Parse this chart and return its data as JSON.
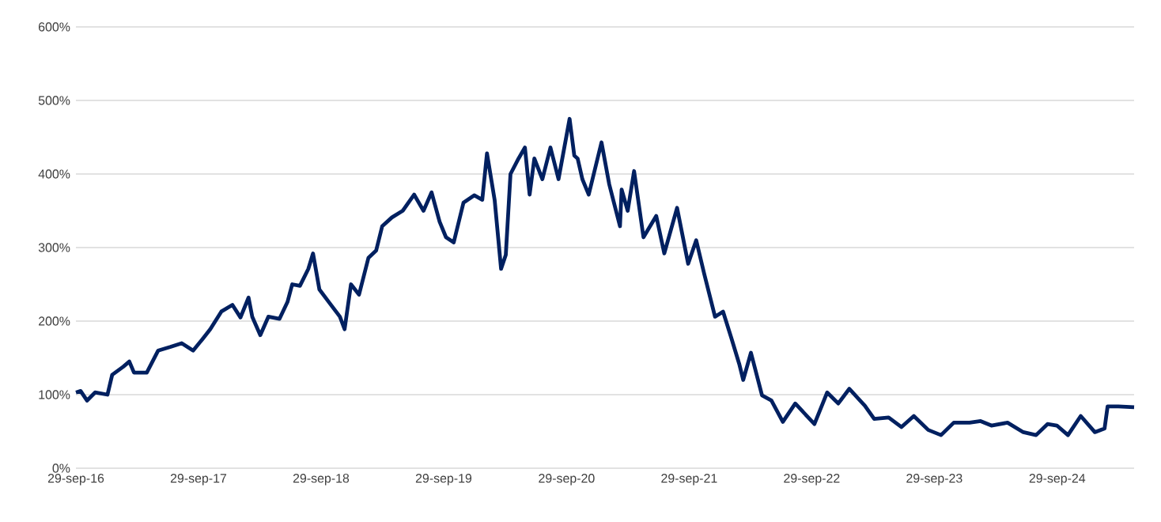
{
  "chart_data": {
    "type": "line",
    "x": [
      "2016-09-29",
      "2016-10-13",
      "2016-11-01",
      "2016-11-25",
      "2017-01-01",
      "2017-01-15",
      "2017-02-17",
      "2017-03-07",
      "2017-03-21",
      "2017-04-28",
      "2017-06-01",
      "2017-07-08",
      "2017-08-10",
      "2017-09-13",
      "2017-10-10",
      "2017-11-03",
      "2017-12-06",
      "2018-01-08",
      "2018-02-01",
      "2018-02-25",
      "2018-03-08",
      "2018-04-01",
      "2018-04-25",
      "2018-05-28",
      "2018-06-21",
      "2018-07-05",
      "2018-07-28",
      "2018-08-22",
      "2018-09-05",
      "2018-09-24",
      "2018-10-22",
      "2018-11-24",
      "2018-12-08",
      "2018-12-27",
      "2019-01-20",
      "2019-02-17",
      "2019-03-12",
      "2019-03-30",
      "2019-04-28",
      "2019-05-30",
      "2019-07-03",
      "2019-07-31",
      "2019-08-24",
      "2019-09-17",
      "2019-10-06",
      "2019-10-29",
      "2019-11-27",
      "2019-12-29",
      "2020-01-22",
      "2020-02-05",
      "2020-02-28",
      "2020-03-18",
      "2020-04-01",
      "2020-04-15",
      "2020-05-09",
      "2020-05-28",
      "2020-06-11",
      "2020-06-25",
      "2020-07-19",
      "2020-08-12",
      "2020-09-05",
      "2020-10-08",
      "2020-10-22",
      "2020-11-01",
      "2020-11-15",
      "2020-12-04",
      "2021-01-11",
      "2021-02-03",
      "2021-03-07",
      "2021-03-12",
      "2021-03-30",
      "2021-04-18",
      "2021-05-16",
      "2021-06-23",
      "2021-07-17",
      "2021-08-24",
      "2021-09-26",
      "2021-10-20",
      "2021-11-13",
      "2021-12-15",
      "2022-01-08",
      "2022-02-01",
      "2022-02-25",
      "2022-03-09",
      "2022-04-01",
      "2022-05-04",
      "2022-06-01",
      "2022-07-05",
      "2022-08-11",
      "2022-10-07",
      "2022-11-14",
      "2022-12-17",
      "2023-01-19",
      "2023-03-06",
      "2023-04-03",
      "2023-05-16",
      "2023-06-23",
      "2023-07-30",
      "2023-09-11",
      "2023-10-19",
      "2023-11-26",
      "2024-01-12",
      "2024-02-14",
      "2024-03-17",
      "2024-05-04",
      "2024-06-20",
      "2024-07-28",
      "2024-08-31",
      "2024-09-28",
      "2024-10-31",
      "2024-12-08",
      "2025-01-19",
      "2025-02-17",
      "2025-02-26",
      "2025-03-30",
      "2025-05-16"
    ],
    "series": [
      {
        "color": "#002060",
        "values": [
          103,
          105,
          92,
          103,
          100,
          127,
          138,
          145,
          130,
          130,
          160,
          165,
          170,
          160,
          175,
          189,
          213,
          222,
          205,
          232,
          206,
          181,
          206,
          203,
          226,
          250,
          248,
          271,
          292,
          243,
          226,
          206,
          189,
          250,
          236,
          286,
          296,
          329,
          341,
          350,
          372,
          350,
          375,
          335,
          314,
          307,
          361,
          371,
          365,
          428,
          364,
          271,
          290,
          400,
          421,
          436,
          372,
          421,
          393,
          436,
          393,
          475,
          425,
          421,
          393,
          372,
          443,
          386,
          329,
          379,
          350,
          404,
          314,
          343,
          292,
          354,
          278,
          310,
          264,
          206,
          213,
          178,
          142,
          120,
          157,
          99,
          92,
          63,
          88,
          60,
          103,
          88,
          108,
          85,
          67,
          69,
          56,
          71,
          52,
          45,
          62,
          62,
          64,
          58,
          62,
          49,
          45,
          60,
          58,
          45,
          71,
          49,
          54,
          84,
          84,
          83
        ]
      }
    ],
    "xlim": [
      "2016-09-29",
      "2025-05-16"
    ],
    "xticks": [
      {
        "value": "2016-09-29",
        "label": "29-sep-16"
      },
      {
        "value": "2017-09-29",
        "label": "29-sep-17"
      },
      {
        "value": "2018-09-29",
        "label": "29-sep-18"
      },
      {
        "value": "2019-09-29",
        "label": "29-sep-19"
      },
      {
        "value": "2020-09-29",
        "label": "29-sep-20"
      },
      {
        "value": "2021-09-29",
        "label": "29-sep-21"
      },
      {
        "value": "2022-09-29",
        "label": "29-sep-22"
      },
      {
        "value": "2023-09-29",
        "label": "29-sep-23"
      },
      {
        "value": "2024-09-29",
        "label": "29-sep-24"
      }
    ],
    "ylim": [
      0,
      600
    ],
    "yticks": [
      {
        "value": 0,
        "label": "0%"
      },
      {
        "value": 100,
        "label": "100%"
      },
      {
        "value": 200,
        "label": "200%"
      },
      {
        "value": 300,
        "label": "300%"
      },
      {
        "value": 400,
        "label": "400%"
      },
      {
        "value": 500,
        "label": "500%"
      },
      {
        "value": 600,
        "label": "600%"
      }
    ],
    "grid": "y",
    "line_style": "solid"
  }
}
